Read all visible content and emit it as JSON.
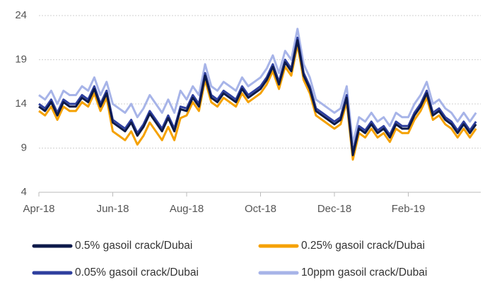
{
  "chart_data": {
    "type": "line",
    "categories": [
      "Apr-18",
      null,
      null,
      null,
      null,
      null,
      null,
      null,
      null,
      null,
      null,
      null,
      "Jun-18",
      null,
      null,
      null,
      null,
      null,
      null,
      null,
      null,
      null,
      null,
      null,
      "Aug-18",
      null,
      null,
      null,
      null,
      null,
      null,
      null,
      null,
      null,
      null,
      null,
      "Oct-18",
      null,
      null,
      null,
      null,
      null,
      null,
      null,
      null,
      null,
      null,
      null,
      "Dec-18",
      null,
      null,
      null,
      null,
      null,
      null,
      null,
      null,
      null,
      null,
      null,
      "Feb-19",
      null,
      null,
      null,
      null,
      null,
      null,
      null,
      null,
      null,
      null,
      null
    ],
    "series": [
      {
        "name": "0.5% gasoil crack/Dubai",
        "color": "#0d1a4a",
        "values": [
          13.7,
          13.2,
          14.2,
          12.7,
          14.2,
          13.7,
          13.7,
          14.7,
          14.2,
          15.7,
          13.7,
          15.2,
          11.9,
          11.4,
          10.9,
          11.9,
          10.4,
          11.4,
          12.9,
          11.9,
          10.9,
          12.4,
          10.9,
          13.4,
          13.2,
          14.7,
          13.7,
          17.2,
          14.7,
          14.2,
          15.2,
          14.7,
          14.2,
          15.7,
          14.7,
          15.2,
          15.7,
          16.7,
          18.2,
          16.2,
          18.7,
          17.7,
          21.2,
          17.2,
          15.7,
          13.2,
          12.7,
          12.2,
          11.7,
          12.2,
          14.7,
          8.2,
          11.2,
          10.7,
          11.7,
          10.7,
          11.2,
          10.2,
          11.7,
          11.2,
          11.2,
          12.7,
          13.7,
          15.2,
          12.7,
          13.2,
          12.2,
          11.7,
          10.7,
          11.7,
          10.7,
          11.7
        ]
      },
      {
        "name": "0.25% gasoil crack/Dubai",
        "color": "#f5a100",
        "values": [
          13.2,
          12.7,
          13.7,
          12.2,
          13.7,
          13.2,
          13.2,
          14.2,
          13.7,
          15.2,
          13.2,
          14.7,
          10.9,
          10.4,
          9.9,
          10.9,
          9.4,
          10.4,
          11.9,
          10.9,
          9.9,
          11.4,
          9.9,
          12.4,
          12.7,
          14.2,
          13.2,
          16.7,
          14.2,
          13.7,
          14.7,
          14.2,
          13.7,
          15.2,
          14.2,
          14.7,
          15.2,
          16.2,
          17.7,
          15.7,
          18.2,
          17.2,
          20.7,
          16.7,
          15.2,
          12.7,
          12.2,
          11.7,
          11.2,
          11.7,
          14.2,
          7.7,
          10.7,
          10.2,
          11.2,
          10.2,
          10.7,
          9.7,
          11.2,
          10.7,
          10.7,
          12.2,
          13.2,
          14.7,
          12.2,
          12.7,
          11.7,
          11.2,
          10.2,
          11.2,
          10.2,
          11.2
        ]
      },
      {
        "name": "0.05% gasoil crack/Dubai",
        "color": "#2e3f9e",
        "values": [
          14,
          13.5,
          14.5,
          13,
          14.5,
          14,
          14,
          15,
          14.5,
          16,
          14,
          15.5,
          12.2,
          11.7,
          11.2,
          12.2,
          10.7,
          11.7,
          13.2,
          12.2,
          11.2,
          12.7,
          11.2,
          13.7,
          13.5,
          15,
          14,
          17.5,
          15,
          14.5,
          15.5,
          15,
          14.5,
          16,
          15,
          15.5,
          16,
          17,
          18.5,
          16.5,
          19,
          18,
          21.5,
          17.5,
          16,
          13.5,
          13,
          12.5,
          12,
          12.5,
          15,
          8.5,
          11.5,
          11,
          12,
          11,
          11.5,
          10.5,
          12,
          11.5,
          11.5,
          13,
          14,
          15.5,
          13,
          13.5,
          12.5,
          12,
          11,
          12,
          11,
          12
        ]
      },
      {
        "name": "10ppm gasoil crack/Dubai",
        "color": "#a7b4e8",
        "values": [
          15,
          14.5,
          15.5,
          14,
          15.5,
          15,
          15,
          16,
          15.5,
          17,
          15,
          16.5,
          14,
          13.5,
          13,
          14,
          12.5,
          13.5,
          15,
          14,
          13,
          14.5,
          13,
          15.5,
          14.5,
          16,
          15,
          18.5,
          16,
          15.5,
          16.5,
          16,
          15.5,
          17,
          16,
          16.5,
          17,
          18,
          19.5,
          17.5,
          20,
          19,
          22.5,
          18.5,
          17,
          14.5,
          14,
          13.5,
          13,
          13.5,
          16,
          9.5,
          12.5,
          12,
          13,
          12,
          12.5,
          11.5,
          13,
          12.5,
          12.5,
          14,
          15,
          16.5,
          14,
          14.5,
          13.5,
          13,
          12,
          13,
          12,
          13
        ]
      }
    ],
    "ylim": [
      4,
      24
    ],
    "yticks": [
      4,
      9,
      14,
      19,
      24
    ],
    "grid": true
  }
}
